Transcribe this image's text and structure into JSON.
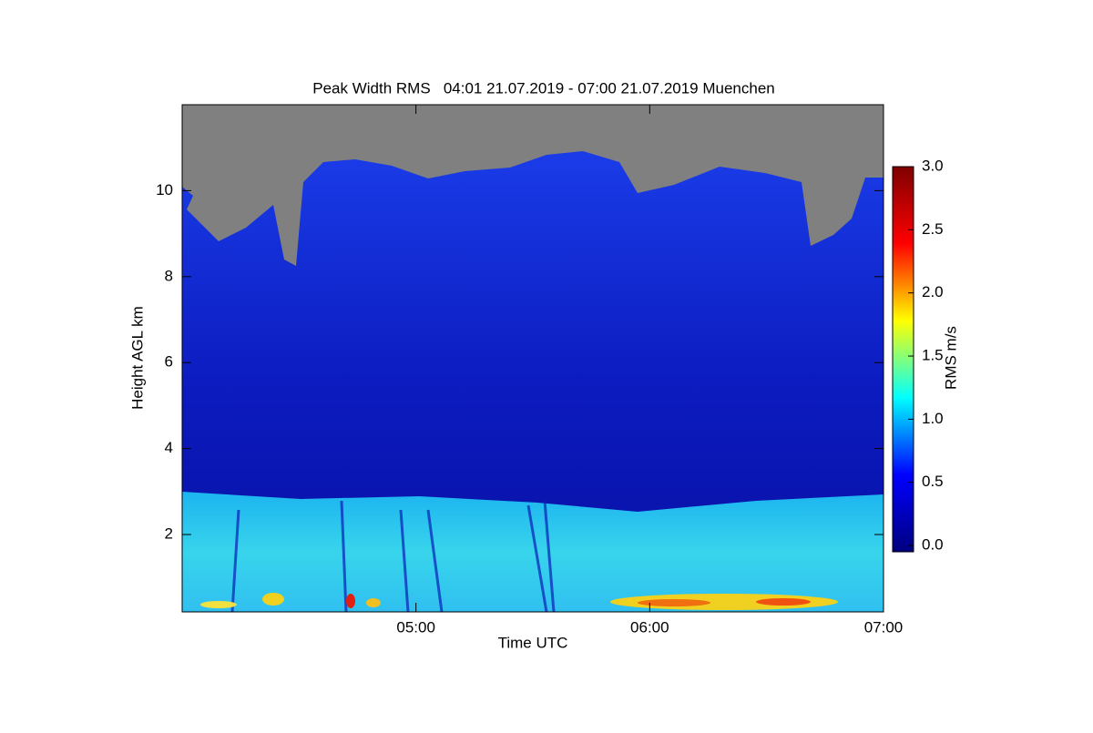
{
  "chart_data": {
    "type": "heatmap",
    "title": "Peak Width RMS   04:01 21.07.2019 - 07:00 21.07.2019 Muenchen",
    "x_label": "Time UTC",
    "y_label": "Height AGL km",
    "colorbar_label": "RMS m/s",
    "xlim": [
      4.0,
      7.0
    ],
    "xticks": [
      {
        "value": 5,
        "label": "05:00"
      },
      {
        "value": 6,
        "label": "06:00"
      },
      {
        "value": 7,
        "label": "07:00"
      }
    ],
    "ylim": [
      0.2,
      12.0
    ],
    "yticks": [
      2,
      4,
      6,
      8,
      10
    ],
    "clim": [
      -0.05,
      3.0
    ],
    "cticks": [
      {
        "value": 0,
        "label": "0.0"
      },
      {
        "value": 0.5,
        "label": "0.5"
      },
      {
        "value": 1,
        "label": "1.0"
      },
      {
        "value": 1.5,
        "label": "1.5"
      },
      {
        "value": 2,
        "label": "2.0"
      },
      {
        "value": 2.5,
        "label": "2.5"
      },
      {
        "value": 3,
        "label": "3.0"
      }
    ],
    "colormap": [
      "#00007f",
      "#0000ff",
      "#00ffff",
      "#ffff00",
      "#ff0000",
      "#7f0000"
    ],
    "missing_color": "#808080"
  }
}
